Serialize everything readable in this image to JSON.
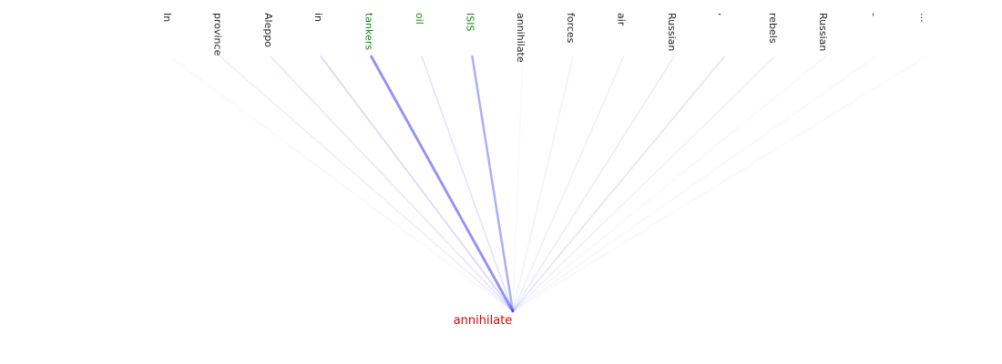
{
  "chart_data": {
    "type": "attention",
    "target": {
      "label": "annihilate",
      "color": "#dd0000"
    },
    "edge_color": "#3333ee",
    "highlight_color": "#118811",
    "default_color": "#222222",
    "tokens": [
      {
        "label": "In",
        "weight": 0.0,
        "highlight": false
      },
      {
        "label": "province",
        "weight": 0.05,
        "highlight": false
      },
      {
        "label": "Aleppo",
        "weight": 0.08,
        "highlight": false
      },
      {
        "label": "in",
        "weight": 0.15,
        "highlight": false
      },
      {
        "label": "tankers",
        "weight": 0.55,
        "highlight": true
      },
      {
        "label": "oil",
        "weight": 0.1,
        "highlight": true
      },
      {
        "label": "ISIS",
        "weight": 0.4,
        "highlight": true
      },
      {
        "label": "annihilate",
        "weight": 0.0,
        "highlight": false
      },
      {
        "label": "forces",
        "weight": 0.03,
        "highlight": false
      },
      {
        "label": "air",
        "weight": 0.04,
        "highlight": false
      },
      {
        "label": "Russian",
        "weight": 0.06,
        "highlight": false
      },
      {
        "label": ",",
        "weight": 0.1,
        "highlight": false
      },
      {
        "label": "rebels",
        "weight": 0.03,
        "highlight": false
      },
      {
        "label": "Russian",
        "weight": 0.0,
        "highlight": false
      },
      {
        "label": "-",
        "weight": 0.0,
        "highlight": false
      },
      {
        "label": "...",
        "weight": 0.0,
        "highlight": false
      }
    ]
  }
}
